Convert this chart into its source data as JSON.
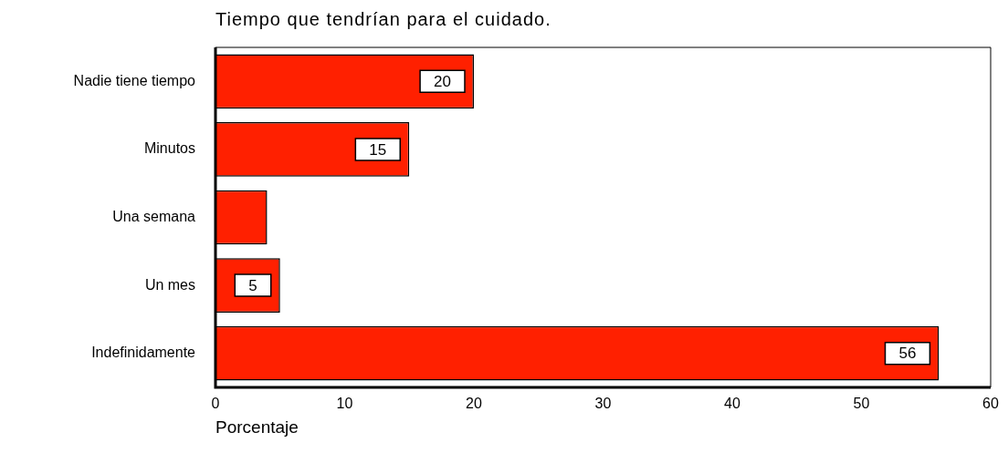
{
  "chart_data": {
    "type": "bar",
    "orientation": "horizontal",
    "title": "Tiempo que tendrían para el cuidado.",
    "xlabel": "Porcentaje",
    "categories": [
      "Nadie tiene tiempo",
      "Minutos",
      "Una semana",
      "Un mes",
      "Indefinidamente"
    ],
    "values": [
      20,
      15,
      4,
      5,
      56
    ],
    "value_labels": [
      "20",
      "15",
      null,
      "5",
      "56"
    ],
    "color": "#ff2000",
    "xlim": [
      0,
      60
    ],
    "xticks": [
      0,
      10,
      20,
      30,
      40,
      50,
      60
    ],
    "grid": false,
    "legend": false
  }
}
